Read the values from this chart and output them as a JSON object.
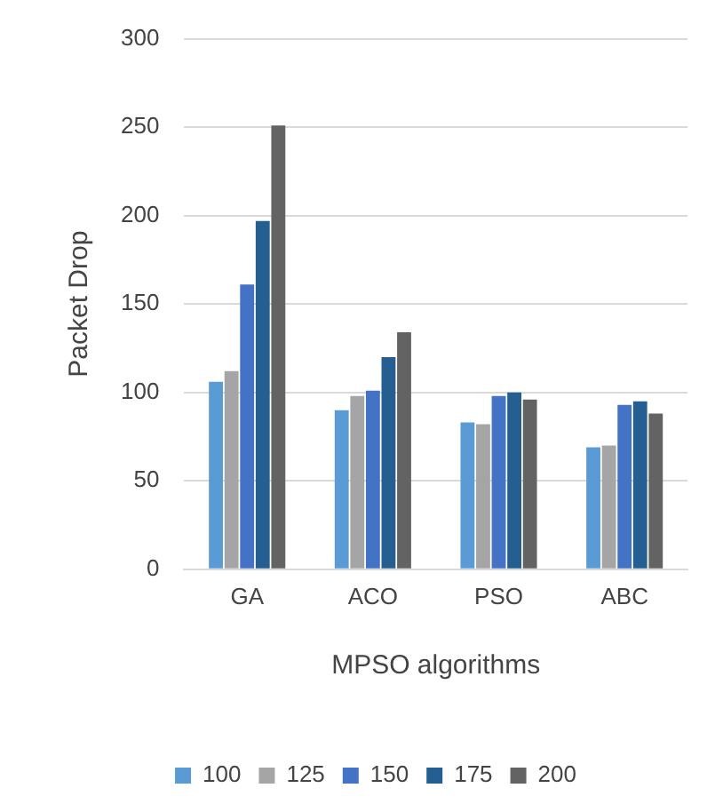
{
  "chart_data": {
    "type": "bar",
    "xlabel": "MPSO algorithms",
    "ylabel": "Packet Drop",
    "categories": [
      "GA",
      "ACO",
      "PSO",
      "ABC"
    ],
    "series": [
      {
        "name": "100",
        "color": "#5b9bd5",
        "values": [
          106,
          90,
          83,
          69
        ]
      },
      {
        "name": "125",
        "color": "#a5a5a5",
        "values": [
          112,
          98,
          82,
          70
        ]
      },
      {
        "name": "150",
        "color": "#4472c4",
        "values": [
          161,
          101,
          98,
          93
        ]
      },
      {
        "name": "175",
        "color": "#255e91",
        "values": [
          197,
          120,
          100,
          95
        ]
      },
      {
        "name": "200",
        "color": "#636363",
        "values": [
          251,
          134,
          96,
          88
        ]
      }
    ],
    "ylim": [
      0,
      300
    ],
    "yticks": [
      0,
      50,
      100,
      150,
      200,
      250,
      300
    ],
    "grid": "y",
    "legend": "bottom"
  }
}
